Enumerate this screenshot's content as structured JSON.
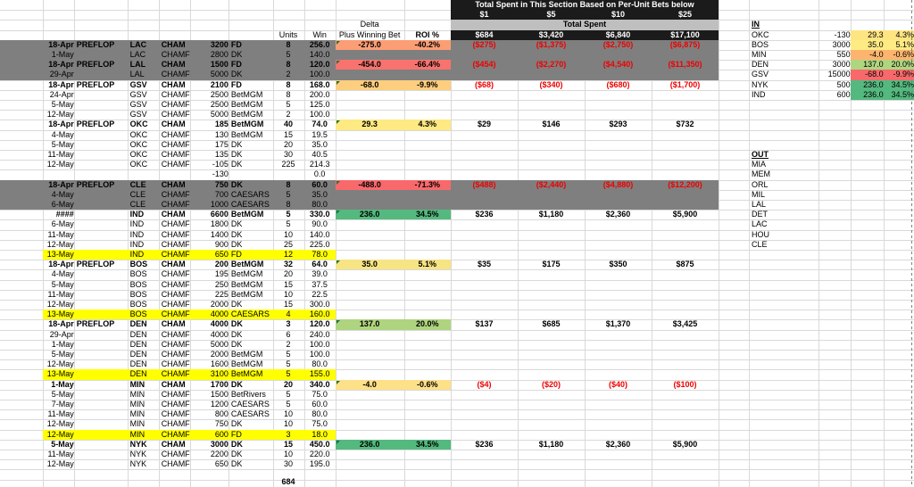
{
  "header_block": {
    "title": "Total Spent in This Section Based on Per-Unit Bets below",
    "bet_sizes": [
      "$1",
      "$5",
      "$10",
      "$25"
    ],
    "total_spent_label": "Total Spent",
    "totals": [
      "$684",
      "$3,420",
      "$6,840",
      "$17,100"
    ]
  },
  "table_headers": {
    "units": "Units",
    "win": "Win",
    "delta_line1": "Delta",
    "delta_line2": "Plus Winning Bet",
    "roi": "ROI %"
  },
  "rows": [
    {
      "date": "18-Apr",
      "preflop": "PREFLOP",
      "team": "LAC",
      "champ": "CHAM",
      "amount": "3200",
      "book": "FD",
      "units": "8",
      "win": "256.0",
      "delta": "-275.0",
      "roi": "-40.2%",
      "spent": [
        "($275)",
        "($1,375)",
        "($2,750)",
        "($6,875)"
      ],
      "bold": true,
      "bg": "gray",
      "cell_color": "#FB9E75",
      "spent_negative": true
    },
    {
      "date": "1-May",
      "team": "LAC",
      "champ": "CHAMF",
      "amount": "2800",
      "book": "DK",
      "units": "5",
      "win": "140.0",
      "bg": "gray"
    },
    {
      "date": "18-Apr",
      "preflop": "PREFLOP",
      "team": "LAL",
      "champ": "CHAM",
      "amount": "1500",
      "book": "FD",
      "units": "8",
      "win": "120.0",
      "delta": "-454.0",
      "roi": "-66.4%",
      "spent": [
        "($454)",
        "($2,270)",
        "($4,540)",
        "($11,350)"
      ],
      "bold": true,
      "bg": "gray",
      "cell_color": "#F8736E",
      "spent_negative": true
    },
    {
      "date": "29-Apr",
      "team": "LAL",
      "champ": "CHAMF",
      "amount": "5000",
      "book": "DK",
      "units": "2",
      "win": "100.0",
      "bg": "gray"
    },
    {
      "date": "18-Apr",
      "preflop": "PREFLOP",
      "team": "GSV",
      "champ": "CHAM",
      "amount": "2100",
      "book": "FD",
      "units": "8",
      "win": "168.0",
      "delta": "-68.0",
      "roi": "-9.9%",
      "spent": [
        "($68)",
        "($340)",
        "($680)",
        "($1,700)"
      ],
      "bold": true,
      "cell_color": "#FDCE7E",
      "spent_negative": true
    },
    {
      "date": "24-Apr",
      "team": "GSV",
      "champ": "CHAMF",
      "amount": "2500",
      "book": "BetMGM",
      "units": "8",
      "win": "200.0"
    },
    {
      "date": "5-May",
      "team": "GSV",
      "champ": "CHAMF",
      "amount": "2500",
      "book": "BetMGM",
      "units": "5",
      "win": "125.0"
    },
    {
      "date": "12-May",
      "team": "GSV",
      "champ": "CHAMF",
      "amount": "5000",
      "book": "BetMGM",
      "units": "2",
      "win": "100.0"
    },
    {
      "date": "18-Apr",
      "preflop": "PREFLOP",
      "team": "OKC",
      "champ": "CHAM",
      "amount": "185",
      "book": "BetMGM",
      "units": "40",
      "win": "74.0",
      "delta": "29.3",
      "roi": "4.3%",
      "spent": [
        "$29",
        "$146",
        "$293",
        "$732"
      ],
      "bold": true,
      "cell_color": "#FFE982"
    },
    {
      "date": "4-May",
      "team": "OKC",
      "champ": "CHAMF",
      "amount": "130",
      "book": "BetMGM",
      "units": "15",
      "win": "19.5"
    },
    {
      "date": "5-May",
      "team": "OKC",
      "champ": "CHAMF",
      "amount": "175",
      "book": "DK",
      "units": "20",
      "win": "35.0"
    },
    {
      "date": "11-May",
      "team": "OKC",
      "champ": "CHAMF",
      "amount": "135",
      "book": "DK",
      "units": "30",
      "win": "40.5"
    },
    {
      "date": "12-May",
      "team": "OKC",
      "champ": "CHAMF",
      "amount": "-105",
      "book": "DK",
      "units": "225",
      "win": "214.3"
    },
    {
      "amount": "-130",
      "win": "0.0"
    },
    {
      "date": "18-Apr",
      "preflop": "PREFLOP",
      "team": "CLE",
      "champ": "CHAM",
      "amount": "750",
      "book": "DK",
      "units": "8",
      "win": "60.0",
      "delta": "-488.0",
      "roi": "-71.3%",
      "spent": [
        "($488)",
        "($2,440)",
        "($4,880)",
        "($12,200)"
      ],
      "bold": true,
      "bg": "gray",
      "cell_color": "#F8696B",
      "spent_negative": true
    },
    {
      "date": "4-May",
      "team": "CLE",
      "champ": "CHAMF",
      "amount": "700",
      "book": "CAESARS",
      "units": "5",
      "win": "35.0",
      "bg": "gray"
    },
    {
      "date": "6-May",
      "team": "CLE",
      "champ": "CHAMF",
      "amount": "1000",
      "book": "CAESARS",
      "units": "8",
      "win": "80.0",
      "bg": "gray"
    },
    {
      "date": "####",
      "team": "IND",
      "champ": "CHAM",
      "amount": "6600",
      "book": "BetMGM",
      "units": "5",
      "win": "330.0",
      "delta": "236.0",
      "roi": "34.5%",
      "spent": [
        "$236",
        "$1,180",
        "$2,360",
        "$5,900"
      ],
      "bold": true,
      "cell_color": "#54B97E"
    },
    {
      "date": "6-May",
      "team": "IND",
      "champ": "CHAMF",
      "amount": "1800",
      "book": "DK",
      "units": "5",
      "win": "90.0"
    },
    {
      "date": "11-May",
      "team": "IND",
      "champ": "CHAMF",
      "amount": "1400",
      "book": "DK",
      "units": "10",
      "win": "140.0"
    },
    {
      "date": "12-May",
      "team": "IND",
      "champ": "CHAMF",
      "amount": "900",
      "book": "DK",
      "units": "25",
      "win": "225.0"
    },
    {
      "date": "13-May",
      "team": "IND",
      "champ": "CHAMF",
      "amount": "650",
      "book": "FD",
      "units": "12",
      "win": "78.0",
      "bg": "yellow"
    },
    {
      "date": "18-Apr",
      "preflop": "PREFLOP",
      "team": "BOS",
      "champ": "CHAM",
      "amount": "200",
      "book": "BetMGM",
      "units": "32",
      "win": "64.0",
      "delta": "35.0",
      "roi": "5.1%",
      "spent": [
        "$35",
        "$175",
        "$350",
        "$875"
      ],
      "bold": true,
      "cell_color": "#F7E483"
    },
    {
      "date": "4-May",
      "team": "BOS",
      "champ": "CHAMF",
      "amount": "195",
      "book": "BetMGM",
      "units": "20",
      "win": "39.0"
    },
    {
      "date": "5-May",
      "team": "BOS",
      "champ": "CHAMF",
      "amount": "250",
      "book": "BetMGM",
      "units": "15",
      "win": "37.5"
    },
    {
      "date": "11-May",
      "team": "BOS",
      "champ": "CHAMF",
      "amount": "225",
      "book": "BetMGM",
      "units": "10",
      "win": "22.5"
    },
    {
      "date": "12-May",
      "team": "BOS",
      "champ": "CHAMF",
      "amount": "2000",
      "book": "DK",
      "units": "15",
      "win": "300.0"
    },
    {
      "date": "13-May",
      "team": "BOS",
      "champ": "CHAMF",
      "amount": "4000",
      "book": "CAESARS",
      "units": "4",
      "win": "160.0",
      "bg": "yellow"
    },
    {
      "date": "18-Apr",
      "preflop": "PREFLOP",
      "team": "DEN",
      "champ": "CHAM",
      "amount": "4000",
      "book": "DK",
      "units": "3",
      "win": "120.0",
      "delta": "137.0",
      "roi": "20.0%",
      "spent": [
        "$137",
        "$685",
        "$1,370",
        "$3,425"
      ],
      "bold": true,
      "cell_color": "#AFD47F"
    },
    {
      "date": "29-Apr",
      "team": "DEN",
      "champ": "CHAMF",
      "amount": "4000",
      "book": "DK",
      "units": "6",
      "win": "240.0"
    },
    {
      "date": "1-May",
      "team": "DEN",
      "champ": "CHAMF",
      "amount": "5000",
      "book": "DK",
      "units": "2",
      "win": "100.0"
    },
    {
      "date": "5-May",
      "team": "DEN",
      "champ": "CHAMF",
      "amount": "2000",
      "book": "BetMGM",
      "units": "5",
      "win": "100.0"
    },
    {
      "date": "12-May",
      "team": "DEN",
      "champ": "CHAMF",
      "amount": "1600",
      "book": "BetMGM",
      "units": "5",
      "win": "80.0"
    },
    {
      "date": "13-May",
      "team": "DEN",
      "champ": "CHAMF",
      "amount": "3100",
      "book": "BetMGM",
      "units": "5",
      "win": "155.0",
      "bg": "yellow"
    },
    {
      "date": "1-May",
      "team": "MIN",
      "champ": "CHAM",
      "amount": "1700",
      "book": "DK",
      "units": "20",
      "win": "340.0",
      "delta": "-4.0",
      "roi": "-0.6%",
      "spent": [
        "($4)",
        "($20)",
        "($40)",
        "($100)"
      ],
      "bold": true,
      "cell_color": "#FDE088",
      "spent_negative": true
    },
    {
      "date": "5-May",
      "team": "MIN",
      "champ": "CHAMF",
      "amount": "1500",
      "book": "BetRivers",
      "units": "5",
      "win": "75.0"
    },
    {
      "date": "7-May",
      "team": "MIN",
      "champ": "CHAMF",
      "amount": "1200",
      "book": "CAESARS",
      "units": "5",
      "win": "60.0"
    },
    {
      "date": "11-May",
      "team": "MIN",
      "champ": "CHAMF",
      "amount": "800",
      "book": "CAESARS",
      "units": "10",
      "win": "80.0"
    },
    {
      "date": "12-May",
      "team": "MIN",
      "champ": "CHAMF",
      "amount": "750",
      "book": "DK",
      "units": "10",
      "win": "75.0"
    },
    {
      "date": "12-May",
      "team": "MIN",
      "champ": "CHAMF",
      "amount": "600",
      "book": "FD",
      "units": "3",
      "win": "18.0",
      "bg": "yellow"
    },
    {
      "date": "5-May",
      "team": "NYK",
      "champ": "CHAM",
      "amount": "3000",
      "book": "DK",
      "units": "15",
      "win": "450.0",
      "delta": "236.0",
      "roi": "34.5%",
      "spent": [
        "$236",
        "$1,180",
        "$2,360",
        "$5,900"
      ],
      "bold": true,
      "cell_color": "#54B97E"
    },
    {
      "date": "11-May",
      "team": "NYK",
      "champ": "CHAMF",
      "amount": "2200",
      "book": "DK",
      "units": "10",
      "win": "220.0"
    },
    {
      "date": "12-May",
      "team": "NYK",
      "champ": "CHAMF",
      "amount": "650",
      "book": "DK",
      "units": "30",
      "win": "195.0"
    }
  ],
  "footer": {
    "units_total": "684"
  },
  "in_panel": {
    "label": "IN",
    "rows": [
      {
        "team": "OKC",
        "odds": "-130",
        "delta": "29.3",
        "roi": "4.3%",
        "color": "#FFE482"
      },
      {
        "team": "BOS",
        "odds": "3000",
        "delta": "35.0",
        "roi": "5.1%",
        "color": "#FFEB84"
      },
      {
        "team": "MIN",
        "odds": "550",
        "delta": "-4.0",
        "roi": "-0.6%",
        "color": "#FCB46E"
      },
      {
        "team": "DEN",
        "odds": "3000",
        "delta": "137.0",
        "roi": "20.0%",
        "color": "#B0D580"
      },
      {
        "team": "GSV",
        "odds": "15000",
        "delta": "-68.0",
        "roi": "-9.9%",
        "color": "#F8696B"
      },
      {
        "team": "NYK",
        "odds": "500",
        "delta": "236.0",
        "roi": "34.5%",
        "color": "#54B97E"
      },
      {
        "team": "IND",
        "odds": "600",
        "delta": "236.0",
        "roi": "34.5%",
        "color": "#54B97E"
      }
    ]
  },
  "out_panel": {
    "label": "OUT",
    "teams": [
      "MIA",
      "MEM",
      "ORL",
      "MIL",
      "LAL",
      "DET",
      "LAC",
      "HOU",
      "CLE"
    ]
  },
  "colors": {
    "gray_row": "#7F7F7F",
    "yellow_row": "#FFFF00",
    "header_black": "#1B1B1B",
    "header_gray": "#BFBFBF",
    "header_text": "#FFFFFF",
    "negative_text": "#EE0000",
    "gridline": "#D9D9D9",
    "page_break": "#808080",
    "comment_flag": "#217346"
  }
}
